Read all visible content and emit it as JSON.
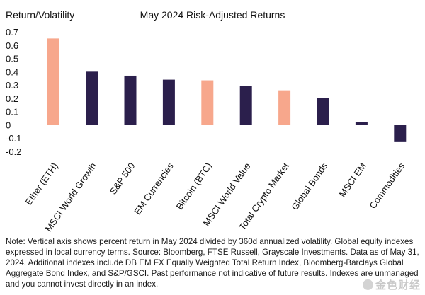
{
  "chart_data": {
    "type": "bar",
    "title": "May 2024 Risk-Adjusted Returns",
    "ylabel": "Return/Volatility",
    "xlabel": "",
    "ylim": [
      -0.2,
      0.7
    ],
    "yticks": [
      "0.7",
      "0.6",
      "0.5",
      "0.4",
      "0.3",
      "0.2",
      "0.1",
      "0",
      "-0.1",
      "-0.2"
    ],
    "categories": [
      "Ether (ETH)",
      "MSCI World Growth",
      "S&P 500",
      "EM Currencies",
      "Bitcoin (BTC)",
      "MSCI World Value",
      "Total Crypto Market",
      "Global Bonds",
      "MSCI EM",
      "Commodities"
    ],
    "values": [
      0.65,
      0.4,
      0.37,
      0.34,
      0.335,
      0.29,
      0.26,
      0.2,
      0.02,
      -0.13
    ],
    "bar_colors": [
      "#F7A78C",
      "#2B1F4C",
      "#2B1F4C",
      "#2B1F4C",
      "#F7A78C",
      "#2B1F4C",
      "#F7A78C",
      "#2B1F4C",
      "#2B1F4C",
      "#2B1F4C"
    ],
    "grid": false,
    "legend": "none"
  },
  "note": "Note: Vertical axis shows percent return in May 2024 divided by 360d annualized volatility. Global equity indexes expressed in local currency terms. Source: Bloomberg, FTSE Russell, Grayscale Investments. Data as of May 31, 2024. Additional indexes include DB EM FX Equally Weighted Total Return Index, Bloomberg-Barclays Global Aggregate Bond Index, and S&P/GSCI. Past performance not indicative of future results. Indexes are unmanaged and you cannot invest directly in an index.",
  "watermark": "金色财经"
}
